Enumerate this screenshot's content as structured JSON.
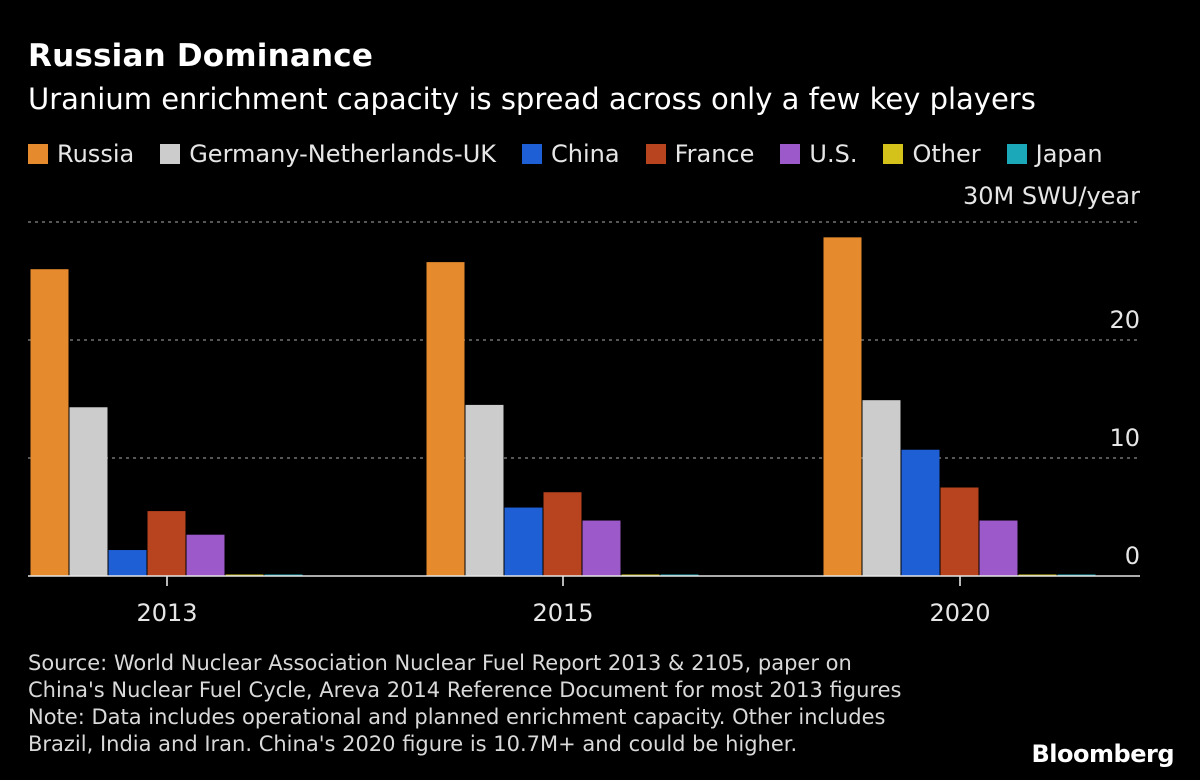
{
  "header": {
    "title": "Russian Dominance",
    "subtitle": "Uranium enrichment capacity is spread across only a few key players"
  },
  "legend": [
    {
      "label": "Russia",
      "color": "#e68a2e"
    },
    {
      "label": "Germany-Netherlands-UK",
      "color": "#cccccc"
    },
    {
      "label": "China",
      "color": "#1f5fd6"
    },
    {
      "label": "France",
      "color": "#b8431f"
    },
    {
      "label": "U.S.",
      "color": "#9b59c9"
    },
    {
      "label": "Other",
      "color": "#d4c21a"
    },
    {
      "label": "Japan",
      "color": "#1ba8b8"
    }
  ],
  "chart_data": {
    "type": "bar",
    "categories": [
      "2013",
      "2015",
      "2020"
    ],
    "series": [
      {
        "name": "Russia",
        "color": "#e68a2e",
        "values": [
          26.0,
          26.6,
          28.7
        ]
      },
      {
        "name": "Germany-Netherlands-UK",
        "color": "#cccccc",
        "values": [
          14.3,
          14.5,
          14.9
        ]
      },
      {
        "name": "China",
        "color": "#1f5fd6",
        "values": [
          2.2,
          5.8,
          10.7
        ]
      },
      {
        "name": "France",
        "color": "#b8431f",
        "values": [
          5.5,
          7.1,
          7.5
        ]
      },
      {
        "name": "U.S.",
        "color": "#9b59c9",
        "values": [
          3.5,
          4.7,
          4.7
        ]
      },
      {
        "name": "Other",
        "color": "#d4c21a",
        "values": [
          0.1,
          0.1,
          0.1
        ]
      },
      {
        "name": "Japan",
        "color": "#1ba8b8",
        "values": [
          0.05,
          0.05,
          0.05
        ]
      }
    ],
    "y_ticks": [
      {
        "value": 30,
        "label": "30M SWU/year"
      },
      {
        "value": 20,
        "label": "20"
      },
      {
        "value": 10,
        "label": "10"
      },
      {
        "value": 0,
        "label": "0"
      }
    ],
    "ylim": [
      0,
      30
    ],
    "grid": true
  },
  "footnote": {
    "lines": [
      "Source: World Nuclear Association Nuclear Fuel Report 2013 & 2105, paper on",
      "China's Nuclear Fuel Cycle, Areva 2014 Reference Document for most 2013 figures",
      "Note: Data includes operational and planned enrichment capacity. Other includes",
      "Brazil, India and Iran. China's 2020 figure is 10.7M+ and could be higher."
    ]
  },
  "brand": "Bloomberg"
}
